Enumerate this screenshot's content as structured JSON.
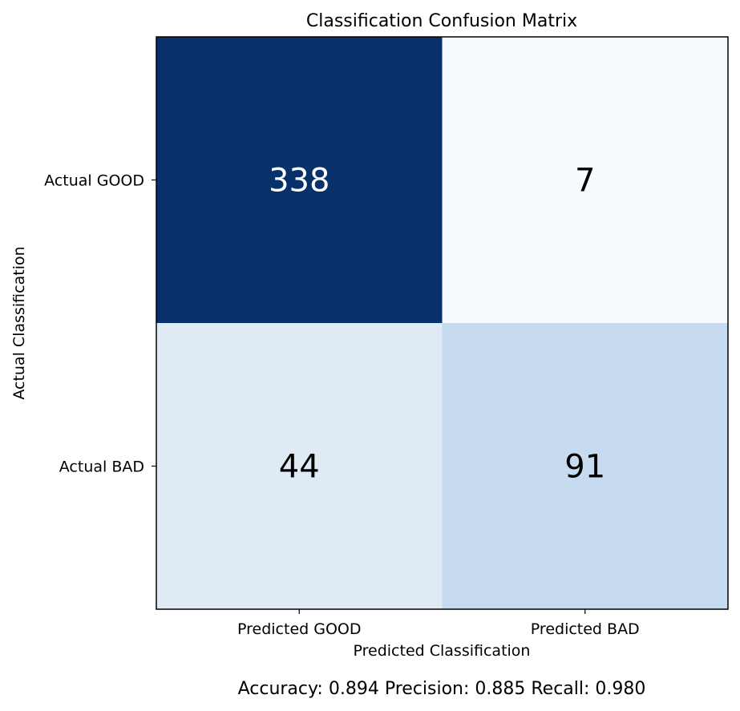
{
  "chart_data": {
    "type": "heatmap",
    "title": "Classification Confusion Matrix",
    "xlabel": "Predicted Classification",
    "ylabel": "Actual Classification",
    "x_categories": [
      "Predicted GOOD",
      "Predicted BAD"
    ],
    "y_categories": [
      "Actual GOOD",
      "Actual BAD"
    ],
    "values": [
      [
        338,
        7
      ],
      [
        44,
        91
      ]
    ],
    "colormap": "Blues",
    "cell_colors": [
      [
        "#08306b",
        "#f7fbff"
      ],
      [
        "#e0eaf5",
        "#c6dbef"
      ]
    ],
    "text_colors": [
      [
        "#ffffff",
        "#000000"
      ],
      [
        "#000000",
        "#000000"
      ]
    ],
    "colorbar": false,
    "footer": "Accuracy: 0.894  Precision: 0.885  Recall: 0.980"
  }
}
